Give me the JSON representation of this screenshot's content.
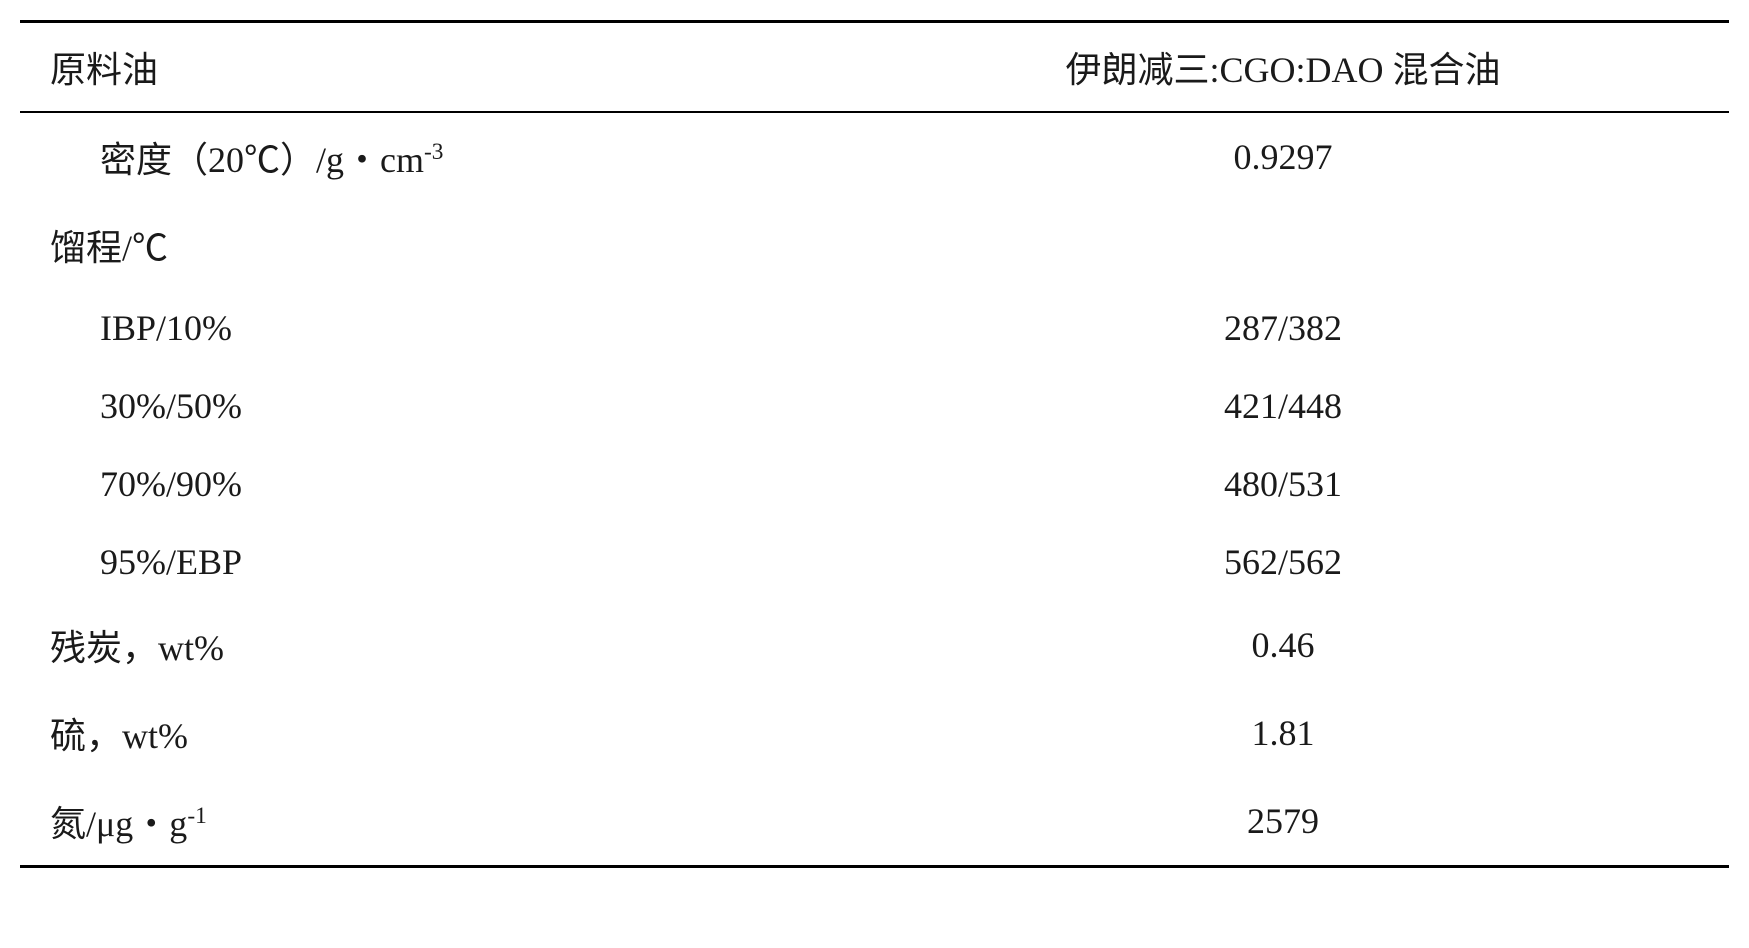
{
  "table": {
    "type": "table",
    "header": {
      "col1": "原料油",
      "col2": "伊朗减三:CGO:DAO 混合油"
    },
    "rows": [
      {
        "label": "密度（20℃）/g・cm",
        "label_sup": "-3",
        "value": "0.9297",
        "indent": true
      },
      {
        "label": "馏程/℃",
        "value": "",
        "indent": false,
        "section": true
      },
      {
        "label": "IBP/10%",
        "value": "287/382",
        "indent": true
      },
      {
        "label": "30%/50%",
        "value": "421/448",
        "indent": true
      },
      {
        "label": "70%/90%",
        "value": "480/531",
        "indent": true
      },
      {
        "label": "95%/EBP",
        "value": "562/562",
        "indent": true
      },
      {
        "label": "残炭，wt%",
        "value": "0.46",
        "indent": false
      },
      {
        "label": "硫，wt%",
        "value": "1.81",
        "indent": false
      },
      {
        "label": "氮/μg・g",
        "label_sup": "-1",
        "value": "2579",
        "indent": false
      }
    ],
    "border_color": "#000000",
    "text_color": "#1a1a1a",
    "background_color": "#ffffff",
    "font_size": 36,
    "row_padding": 18
  }
}
